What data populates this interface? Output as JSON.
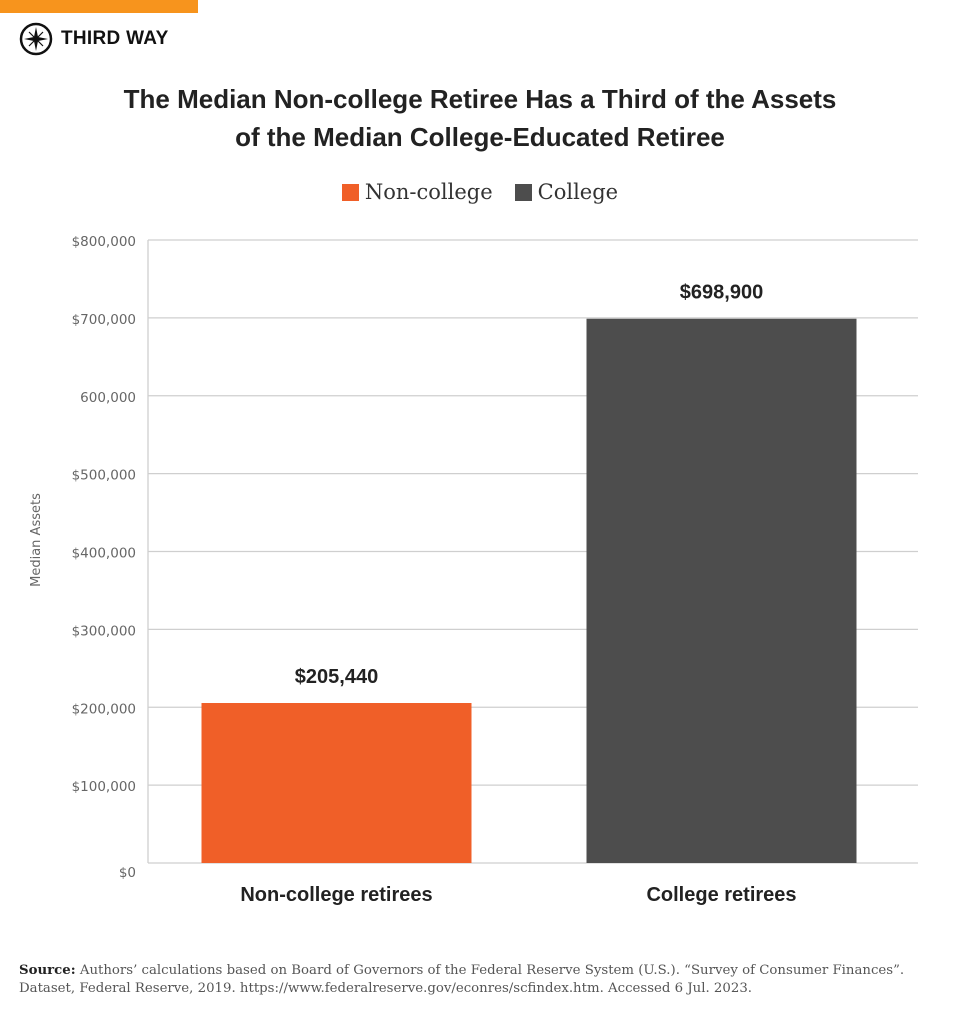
{
  "brand": {
    "name": "THIRD WAY",
    "accent": "#f7941d"
  },
  "title_lines": [
    "The Median Non-college Retiree Has a Third of the Assets",
    "of the Median College-Educated Retiree"
  ],
  "chart_data": {
    "type": "bar",
    "title": "The Median Non-college Retiree Has a Third of the Assets of the Median College-Educated Retiree",
    "categories": [
      "Non-college retirees",
      "College retirees"
    ],
    "series": [
      {
        "name": "Non-college",
        "color": "#f05f28",
        "values": [
          205440,
          null
        ]
      },
      {
        "name": "College",
        "color": "#4d4d4d",
        "values": [
          null,
          698900
        ]
      }
    ],
    "values": [
      205440,
      698900
    ],
    "data_labels": [
      "$205,440",
      "$698,900"
    ],
    "ylabel": "Median Assets",
    "xlabel": "",
    "ylim": [
      0,
      800000
    ],
    "yticks": [
      0,
      100000,
      200000,
      300000,
      400000,
      500000,
      600000,
      700000,
      800000
    ],
    "ytick_labels": [
      "$0",
      "$100,000",
      "$200,000",
      "$300,000",
      "$400,000",
      "$500,000",
      "600,000",
      "$700,000",
      "$800,000"
    ],
    "grid": true,
    "legend_position": "top-center"
  },
  "source": {
    "label": "Source:",
    "text": "Authors’ calculations based on Board of Governors of the Federal Reserve System (U.S.). “Survey of Consumer Finances”. Dataset, Federal Reserve, 2019. https://www.federalreserve.gov/econres/scfindex.htm. Accessed 6 Jul. 2023."
  }
}
